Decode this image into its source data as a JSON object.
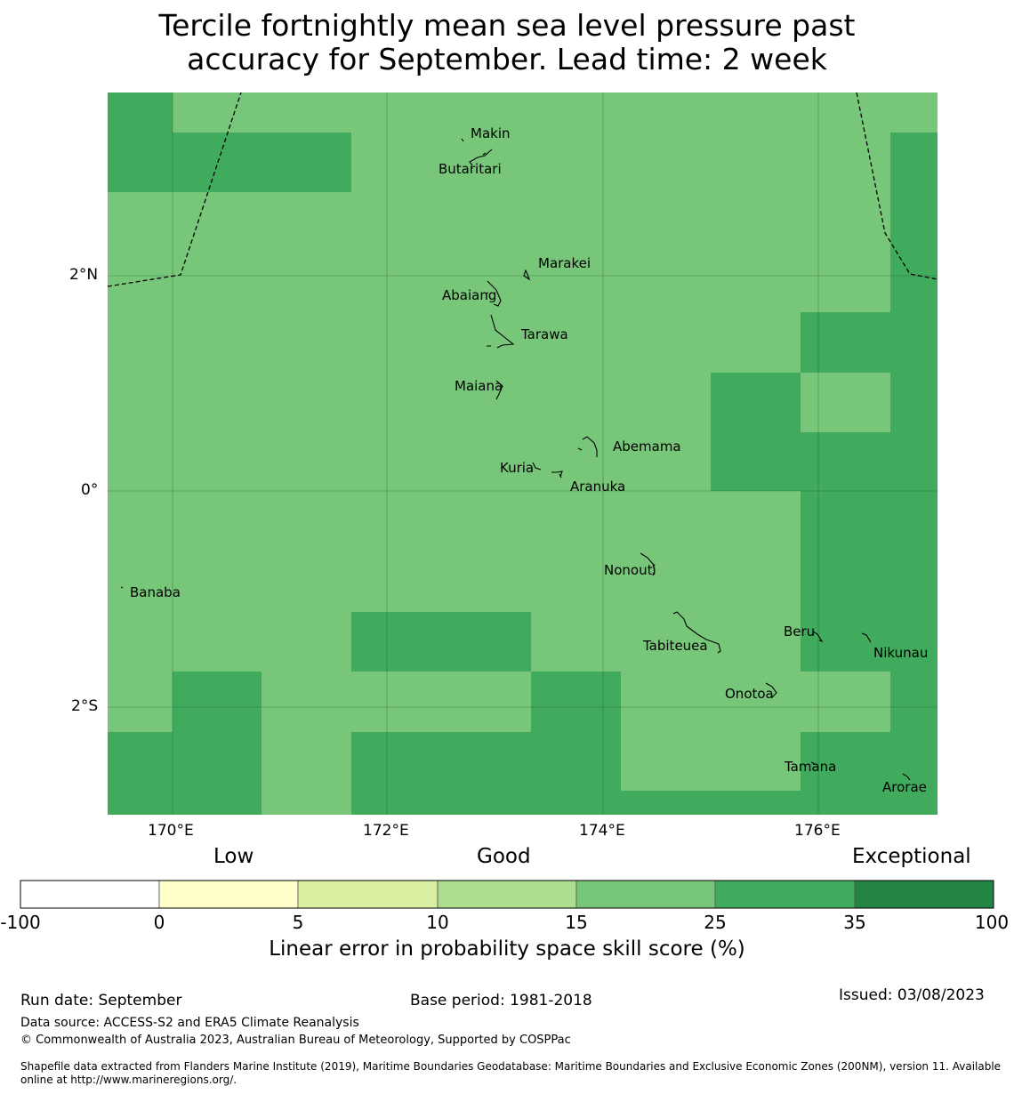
{
  "title": {
    "line1": "Tercile fortnightly mean sea level pressure past",
    "line2": "accuracy for September. Lead time: 2 week"
  },
  "axes": {
    "lon_ticks": [
      "170°E",
      "172°E",
      "174°E",
      "176°E"
    ],
    "lat_ticks": [
      "2°N",
      "0°",
      "2°S"
    ]
  },
  "places": [
    "Makin",
    "Butaritari",
    "Marakei",
    "Abaiang",
    "Tarawa",
    "Maiana",
    "Abemama",
    "Kuria",
    "Aranuka",
    "Banaba",
    "Nonouti",
    "Beru",
    "Tabiteuea",
    "Nikunau",
    "Onotoa",
    "Tamana",
    "Arorae"
  ],
  "skill_colors": {
    "good_25_35": "#78c679",
    "very_good_35_100": "#41ab5d",
    "border": "#000000"
  },
  "colorbar": {
    "categories": [
      "Low",
      "Good",
      "Exceptional"
    ],
    "labels": [
      "-100",
      "0",
      "5",
      "10",
      "15",
      "25",
      "35",
      "100"
    ],
    "colors": [
      "#ffffff",
      "#ffffcc",
      "#d9f0a3",
      "#addd8e",
      "#78c679",
      "#41ab5d",
      "#238443"
    ],
    "title": "Linear error in probability space skill score (%)"
  },
  "footer": {
    "run_date": "Run date: September",
    "base_period": "Base period: 1981-2018",
    "issued": "Issued: 03/08/2023",
    "data_source": "Data source: ACCESS-S2 and ERA5 Climate Reanalysis",
    "copyright": "© Commonwealth of Australia 2023, Australian Bureau of Meteorology, Supported by COSPPac",
    "shapefile_line1": "Shapefile data extracted from Flanders Marine Institute (2019), Maritime Boundaries Geodatabase: Maritime Boundaries and Exclusive Economic Zones (200NM), version 11. Available",
    "shapefile_line2": "online at http://www.marineregions.org/."
  }
}
